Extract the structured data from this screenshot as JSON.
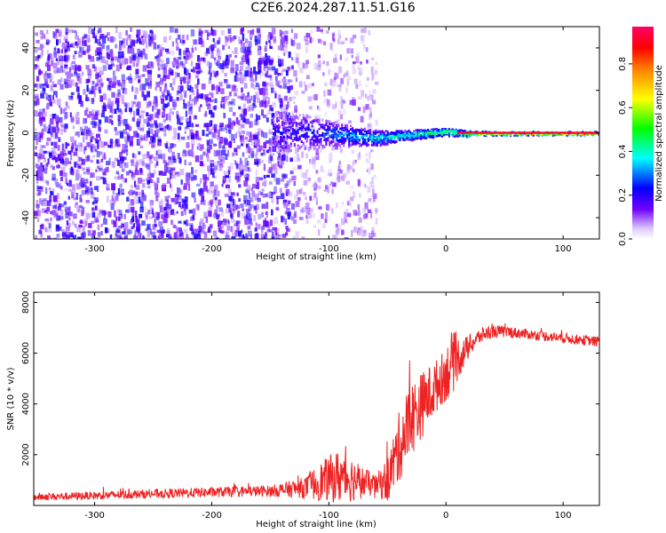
{
  "title": "C2E6.2024.287.11.51.G16",
  "colors": {
    "noise": "#7b2cf0",
    "snr_line": "#ee2222",
    "colorbar": [
      "#ffffff",
      "#dcc8ff",
      "#7000ff",
      "#0000ff",
      "#00ffff",
      "#00ff00",
      "#ffff00",
      "#ff8000",
      "#ff0000",
      "#ff0066"
    ]
  },
  "chart_data": [
    {
      "type": "heatmap",
      "xlabel": "Height of straight line (km)",
      "ylabel": "Frequency (Hz)",
      "xlim": [
        -352,
        131
      ],
      "ylim": [
        -50,
        50
      ],
      "xticks": [
        -300,
        -200,
        -100,
        0,
        100
      ],
      "yticks": [
        -40,
        -20,
        0,
        20,
        40
      ],
      "colorbar": {
        "label": "Normalized spectral amplitude",
        "range": [
          0,
          0.97
        ],
        "ticks": [
          "0.0",
          "0.2",
          "0.4",
          "0.6",
          "0.8"
        ]
      },
      "features": [
        {
          "name": "noise",
          "x_range": [
            -352,
            -132
          ],
          "y_range": [
            -50,
            50
          ],
          "amplitude": 0.15
        },
        {
          "name": "sparse noise",
          "x_range": [
            -132,
            -60
          ],
          "y_range": [
            -50,
            50
          ],
          "amplitude": 0.08
        },
        {
          "name": "signal",
          "x": [
            -148,
            -120,
            -100,
            -80,
            -60,
            -40,
            -20,
            0,
            20,
            60,
            131
          ],
          "freq_center": [
            0,
            1,
            0,
            -1,
            -2,
            -1,
            0,
            1,
            0,
            0,
            0
          ],
          "freq_width": [
            20,
            16,
            12,
            9,
            7,
            5,
            4,
            3,
            2.5,
            2,
            2
          ],
          "amplitude": [
            0.2,
            0.25,
            0.3,
            0.35,
            0.4,
            0.45,
            0.5,
            0.6,
            0.7,
            0.9,
            0.95
          ]
        }
      ]
    },
    {
      "type": "line",
      "xlabel": "Height of straight line (km)",
      "ylabel": "SNR (10 * v/v)",
      "xlim": [
        -352,
        131
      ],
      "ylim": [
        0,
        8400
      ],
      "xticks": [
        -300,
        -200,
        -100,
        0,
        100
      ],
      "yticks": [
        2000,
        4000,
        6000,
        8000
      ],
      "series": [
        {
          "x": [
            -352,
            -300,
            -250,
            -200,
            -150,
            -120,
            -110,
            -100,
            -90,
            -80,
            -70,
            -60,
            -50,
            -40,
            -35,
            -30,
            -25,
            -20,
            -15,
            -10,
            -5,
            0,
            5,
            10,
            15,
            20,
            25,
            30,
            35,
            40,
            50,
            60,
            70,
            80,
            90,
            100,
            110,
            120,
            131
          ],
          "y": [
            330,
            390,
            460,
            520,
            570,
            700,
            900,
            1050,
            1150,
            1050,
            900,
            800,
            1000,
            2300,
            2900,
            3400,
            3700,
            4000,
            4300,
            4600,
            4900,
            5200,
            5600,
            5800,
            6000,
            6300,
            6500,
            6700,
            6800,
            6850,
            6850,
            6800,
            6750,
            6700,
            6650,
            6600,
            6550,
            6500,
            6450
          ],
          "spread": [
            140,
            160,
            180,
            200,
            220,
            420,
            700,
            900,
            1100,
            900,
            600,
            400,
            900,
            1400,
            1500,
            1500,
            1400,
            1300,
            1200,
            1100,
            1000,
            1100,
            1300,
            900,
            600,
            450,
            350,
            300,
            280,
            260,
            240,
            220,
            200,
            200,
            200,
            200,
            200,
            200,
            200
          ]
        }
      ]
    }
  ]
}
